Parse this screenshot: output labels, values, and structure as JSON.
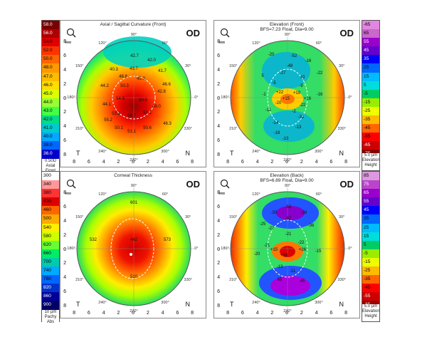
{
  "left_scale_top": {
    "values": [
      "58.0",
      "56.0",
      "54.0",
      "52.0",
      "50.0",
      "48.0",
      "47.0",
      "46.0",
      "45.0",
      "44.0",
      "43.0",
      "42.0",
      "41.0",
      "40.0",
      "38.0",
      "36.0"
    ],
    "colors": [
      "#7a0000",
      "#b00000",
      "#e00000",
      "#ff3300",
      "#ff6600",
      "#ff9900",
      "#ffbb00",
      "#ffdd00",
      "#ddff00",
      "#99ff33",
      "#44ff44",
      "#00dd88",
      "#00cccc",
      "#00aaff",
      "#0066ff",
      "#0000cc"
    ],
    "foot": [
      "0.50D",
      "Axial",
      "Front"
    ]
  },
  "left_scale_bottom": {
    "values": [
      "300",
      "340",
      "380",
      "420",
      "460",
      "500",
      "540",
      "580",
      "620",
      "660",
      "700",
      "740",
      "780",
      "820",
      "860",
      "900"
    ],
    "colors": [
      "#ffffff",
      "#ff9999",
      "#ff3333",
      "#dd0000",
      "#ff6600",
      "#ffaa00",
      "#ffee00",
      "#ccff00",
      "#66ff33",
      "#00ee66",
      "#00ccaa",
      "#00aaff",
      "#0066ff",
      "#0033cc",
      "#000099",
      "#000066"
    ],
    "foot": [
      "10 µm",
      "Pachy",
      "Abs"
    ]
  },
  "right_scale_top": {
    "values": [
      "65",
      "55",
      "45",
      "35",
      "25",
      "15",
      "5",
      "-5",
      "-15",
      "-25",
      "-35",
      "-45",
      "-55",
      "-65",
      "-75"
    ],
    "colors": [
      "#cc66cc",
      "#9900cc",
      "#6600cc",
      "#0000ff",
      "#0066ff",
      "#00bbff",
      "#00dddd",
      "#00cc66",
      "#99ee00",
      "#eeff00",
      "#ffbb00",
      "#ff6600",
      "#ff0000",
      "#cc0000",
      "#880000"
    ],
    "top": "-65",
    "top_color": "#e088e0",
    "foot": [
      "5.0 µm",
      "Elevation",
      "Height"
    ]
  },
  "right_scale_bottom": {
    "values": [
      "85",
      "75",
      "65",
      "55",
      "45",
      "35",
      "25",
      "15",
      "5",
      "-5",
      "-15",
      "-25",
      "-35",
      "-45",
      "-55",
      "-65",
      "-75"
    ],
    "colors": [
      "#dd99dd",
      "#bb44cc",
      "#9900cc",
      "#6600cc",
      "#0000ff",
      "#0066ff",
      "#00bbff",
      "#00dddd",
      "#00cc66",
      "#99ee00",
      "#eeff00",
      "#ffbb00",
      "#ff6600",
      "#ff0000",
      "#cc0000",
      "#990000",
      "#660000"
    ],
    "foot": [
      "5.0 µm",
      "Elevation",
      "Height"
    ]
  },
  "panels": {
    "axial": {
      "title": "Axial / Sagittal Curvature (Front)",
      "od": "OD",
      "zoom": "9mm",
      "t": "T",
      "n": "N",
      "labels": [
        "42.7",
        "42.0",
        "43.7",
        "40.3",
        "41.7",
        "48.8",
        "45.3",
        "50.3",
        "44.2",
        "54.9",
        "50.5",
        "42.8",
        "49.0",
        "44.1",
        "53.2",
        "58.7",
        "53.1",
        "55.2",
        "50.1",
        "51.1",
        "50.6",
        "46.6",
        "46.3"
      ]
    },
    "front_elev": {
      "title": "Elevation (Front)",
      "title2": "BFS=7.23 Float, Dia=9.00",
      "od": "OD",
      "zoom": "9mm",
      "t": "T",
      "n": "N",
      "labels": [
        "-20",
        "-52",
        "-48",
        "-16",
        "5",
        "-27",
        "10",
        "-22",
        "-5",
        "-9",
        "-1",
        "-16",
        "+19",
        "+15",
        "-20",
        "-22",
        "-11",
        "-2",
        "+22",
        "+16",
        "-14",
        "-13",
        "-18",
        "-32",
        "-13"
      ]
    },
    "pachy": {
      "title": "Corneal Thickness",
      "od": "OD",
      "zoom": "9mm",
      "t": "T",
      "n": "N",
      "labels": [
        "601",
        "532",
        "442",
        "573",
        "510"
      ]
    },
    "back_elev": {
      "title": "Elevation (Back)",
      "title2": "BFS=6.89 Float, Dia=9.00",
      "od": "OD",
      "zoom": "9mm",
      "t": "T",
      "n": "N",
      "labels": [
        "-53",
        "-59",
        "-38",
        "-67",
        "-22",
        "-25",
        "-36",
        "-21",
        "-22",
        "-21",
        "+15",
        "+26",
        "+18",
        "-15",
        "-20",
        "-13",
        "-11",
        "65",
        "45"
      ]
    }
  },
  "axis": {
    "x": [
      "8",
      "6",
      "4",
      "2",
      "0",
      "2",
      "4",
      "6",
      "8"
    ],
    "y": [
      "8",
      "6",
      "4",
      "2",
      "0",
      "2",
      "4",
      "6",
      "8"
    ],
    "deg": [
      "90°",
      "60°",
      "30°",
      "0°",
      "330°",
      "300°",
      "270°",
      "240°",
      "210°",
      "180°",
      "150°",
      "120°"
    ]
  }
}
